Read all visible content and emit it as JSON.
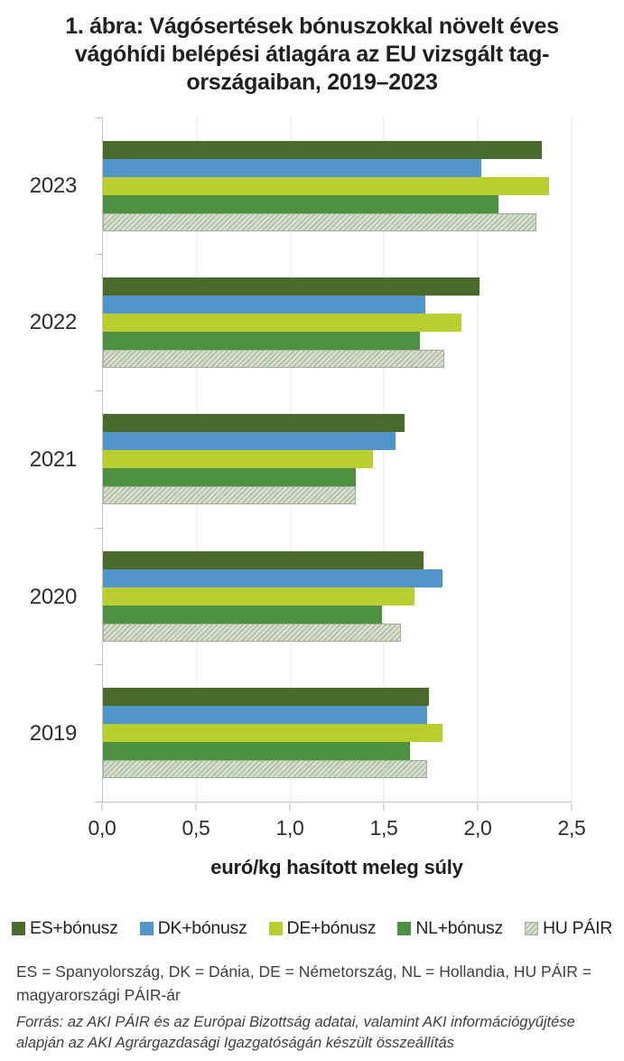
{
  "chart_data": {
    "type": "bar",
    "orientation": "horizontal",
    "title": "1. ábra: Vágósertések bónuszokkal növelt éves\nvágóhídi belépési átlagára az EU vizsgált tag-\nországaiban, 2019–2023",
    "xlabel": "euró/kg hasított meleg súly",
    "ylabel": "",
    "xlim": [
      0,
      2.5
    ],
    "grid": "vertical",
    "legend_position": "bottom",
    "x_ticks": [
      {
        "value": 0.0,
        "label": "0,0"
      },
      {
        "value": 0.5,
        "label": "0,5"
      },
      {
        "value": 1.0,
        "label": "1,0"
      },
      {
        "value": 1.5,
        "label": "1,5"
      },
      {
        "value": 2.0,
        "label": "2,0"
      },
      {
        "value": 2.5,
        "label": "2,5"
      }
    ],
    "categories": [
      "2023",
      "2022",
      "2021",
      "2020",
      "2019"
    ],
    "series": [
      {
        "key": "es-bonusz",
        "name": "ES+bónusz",
        "color": "#4a6a2c",
        "values": [
          2.34,
          2.01,
          1.61,
          1.71,
          1.74
        ]
      },
      {
        "key": "dk-bonusz",
        "name": "DK+bónusz",
        "color": "#5295c9",
        "values": [
          2.02,
          1.72,
          1.56,
          1.81,
          1.73
        ]
      },
      {
        "key": "de-bonusz",
        "name": "DE+bónusz",
        "color": "#bbce2f",
        "values": [
          2.38,
          1.91,
          1.44,
          1.66,
          1.81
        ]
      },
      {
        "key": "nl-bonusz",
        "name": "NL+bónusz",
        "color": "#4b9140",
        "values": [
          2.11,
          1.69,
          1.35,
          1.49,
          1.64
        ]
      },
      {
        "key": "hu-pair",
        "name": "HU PÁIR",
        "hatch": true,
        "hatch_colors": [
          "#b3c2a9",
          "#dce3d5",
          "#a0af97"
        ],
        "values": [
          2.31,
          1.82,
          1.35,
          1.59,
          1.73
        ]
      }
    ]
  },
  "notes": {
    "abbreviations": "ES = Spanyolország, DK = Dánia, DE = Németország, NL = Hollandia, HU PÁIR =\nmagyarországi PÁIR-ár",
    "source": "Forrás: az AKI PÁIR és az Európai Bizottság adatai, valamint AKI információgyűjtése\nalapján az AKI Agrárgazdasági Igazgatóságán készült összeállítás"
  },
  "colors": {
    "gridline": "#e3e3e3",
    "axis_line": "#c6c6c6",
    "tick_mark": "#b9b9b9",
    "title_text": "#1f1f1f",
    "note_text": "#404040"
  }
}
